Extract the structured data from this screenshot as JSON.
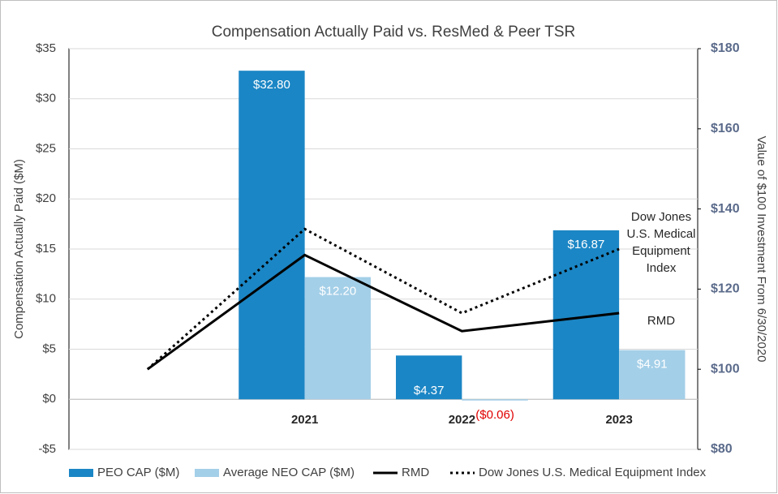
{
  "chart_data": {
    "type": "bar_line",
    "title": "Compensation Actually Paid vs. ResMed & Peer TSR",
    "ylabel": "Compensation Actually Paid ($M)",
    "y2label": "Value of $100 Investment From 6/30/2020",
    "categories": [
      null,
      "2021",
      "2022",
      "2023"
    ],
    "ylim": [
      -5,
      35
    ],
    "yticks": [
      {
        "value": -5,
        "label": "-$5"
      },
      {
        "value": 0,
        "label": "$0"
      },
      {
        "value": 5,
        "label": "$5"
      },
      {
        "value": 10,
        "label": "$10"
      },
      {
        "value": 15,
        "label": "$15"
      },
      {
        "value": 20,
        "label": "$20"
      },
      {
        "value": 25,
        "label": "$25"
      },
      {
        "value": 30,
        "label": "$30"
      },
      {
        "value": 35,
        "label": "$35"
      }
    ],
    "y2lim": [
      80,
      180
    ],
    "y2ticks": [
      {
        "value": 80,
        "label": "$80"
      },
      {
        "value": 100,
        "label": "$100"
      },
      {
        "value": 120,
        "label": "$120"
      },
      {
        "value": 140,
        "label": "$140"
      },
      {
        "value": 160,
        "label": "$160"
      },
      {
        "value": 180,
        "label": "$180"
      }
    ],
    "grid": true,
    "legend": "bottom",
    "negative_label_color": "#e00000",
    "series": [
      {
        "name": "PEO CAP ($M)",
        "type": "bar",
        "color": "#1b86c5",
        "values": [
          null,
          32.8,
          4.37,
          16.87
        ],
        "value_labels": [
          null,
          "$32.80",
          "$4.37",
          "$16.87"
        ]
      },
      {
        "name": "Average NEO CAP ($M)",
        "type": "bar",
        "color": "#a4cfe8",
        "values": [
          null,
          12.2,
          -0.06,
          4.91
        ],
        "value_labels": [
          null,
          "$12.20",
          "($0.06)",
          "$4.91"
        ]
      },
      {
        "name": "RMD",
        "type": "line",
        "axis": "y2",
        "color": "#000000",
        "dash": "solid",
        "values": [
          100,
          128.5,
          109.5,
          114
        ]
      },
      {
        "name": "Dow Jones U.S. Medical Equipment Index",
        "type": "line",
        "axis": "y2",
        "color": "#000000",
        "dash": "dotted",
        "values": [
          100,
          135,
          114,
          130
        ]
      }
    ],
    "annotations": [
      {
        "lines": [
          "Dow Jones",
          "U.S. Medical",
          "Equipment",
          "Index"
        ]
      },
      {
        "lines": [
          "RMD"
        ]
      }
    ]
  }
}
